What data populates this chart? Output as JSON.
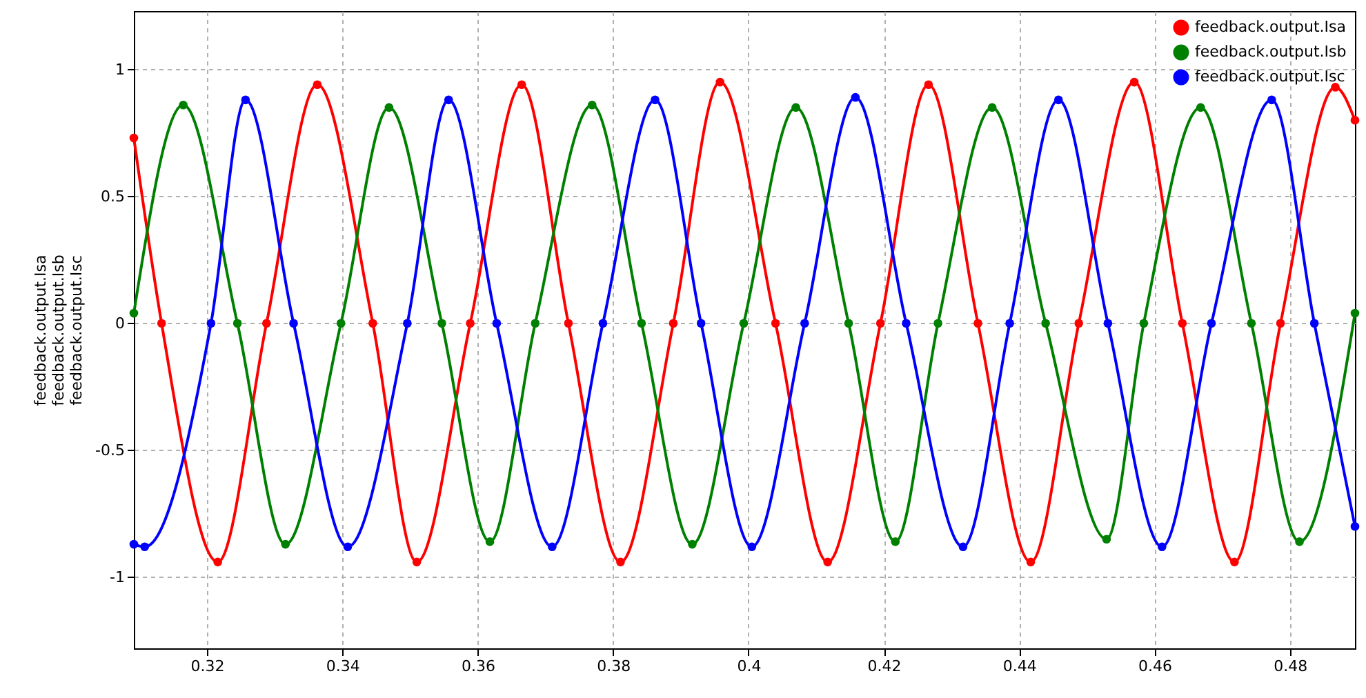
{
  "chart_data": {
    "type": "line",
    "ylabel": "feedback.output.Isa\nfeedback.output.Isb\nfeedback.output.Isc",
    "xlim": [
      0.3092,
      0.4896
    ],
    "xticks": [
      0.32,
      0.34,
      0.36,
      0.38,
      0.4,
      0.42,
      0.44,
      0.46,
      0.48
    ],
    "ylim": [
      -1.28,
      1.23
    ],
    "yticks": [
      -1,
      -0.5,
      0,
      0.5,
      1
    ],
    "grid": true,
    "legend": "top right",
    "marker": "circle",
    "line_style": "solid",
    "series": [
      {
        "name": "feedback.output.Isa",
        "color": "#ff0000",
        "x": [
          0.3092,
          0.3133,
          0.3216,
          0.3288,
          0.3363,
          0.3445,
          0.351,
          0.3589,
          0.3665,
          0.3734,
          0.3811,
          0.3889,
          0.3958,
          0.404,
          0.4117,
          0.4195,
          0.4266,
          0.4339,
          0.4417,
          0.4488,
          0.457,
          0.4641,
          0.4718,
          0.4786,
          0.4867,
          0.4896
        ],
        "values": [
          0.73,
          0,
          -0.94,
          0,
          0.94,
          0,
          -0.94,
          0,
          0.94,
          0,
          -0.94,
          0,
          0.95,
          0,
          -0.94,
          0,
          0.94,
          0,
          -0.94,
          0,
          0.95,
          0,
          -0.94,
          0,
          0.93,
          0.8
        ]
      },
      {
        "name": "feedback.output.Isb",
        "color": "#008000",
        "x": [
          0.3092,
          0.3165,
          0.3245,
          0.3316,
          0.3398,
          0.3469,
          0.3547,
          0.3618,
          0.3685,
          0.3769,
          0.3842,
          0.3917,
          0.3993,
          0.407,
          0.4148,
          0.4217,
          0.428,
          0.436,
          0.4439,
          0.4529,
          0.4584,
          0.4668,
          0.4743,
          0.4814,
          0.4896
        ],
        "values": [
          0.04,
          0.86,
          0,
          -0.87,
          0,
          0.85,
          0,
          -0.86,
          0,
          0.86,
          0,
          -0.87,
          0,
          0.85,
          0,
          -0.86,
          0,
          0.85,
          0,
          -0.85,
          0,
          0.85,
          0,
          -0.86,
          0.04
        ]
      },
      {
        "name": "feedback.output.Isc",
        "color": "#0000ff",
        "x": [
          0.3092,
          0.3108,
          0.3206,
          0.3257,
          0.3328,
          0.3408,
          0.3496,
          0.3557,
          0.3628,
          0.371,
          0.3785,
          0.3862,
          0.393,
          0.4005,
          0.4083,
          0.4158,
          0.4233,
          0.4317,
          0.4386,
          0.4458,
          0.4531,
          0.4611,
          0.4684,
          0.4773,
          0.4836,
          0.4896
        ],
        "values": [
          -0.87,
          -0.88,
          0,
          0.88,
          0,
          -0.88,
          0,
          0.88,
          0,
          -0.88,
          0,
          0.88,
          0,
          -0.88,
          0,
          0.89,
          0,
          -0.88,
          0,
          0.88,
          0,
          -0.88,
          0,
          0.88,
          0,
          -0.8
        ]
      }
    ]
  }
}
